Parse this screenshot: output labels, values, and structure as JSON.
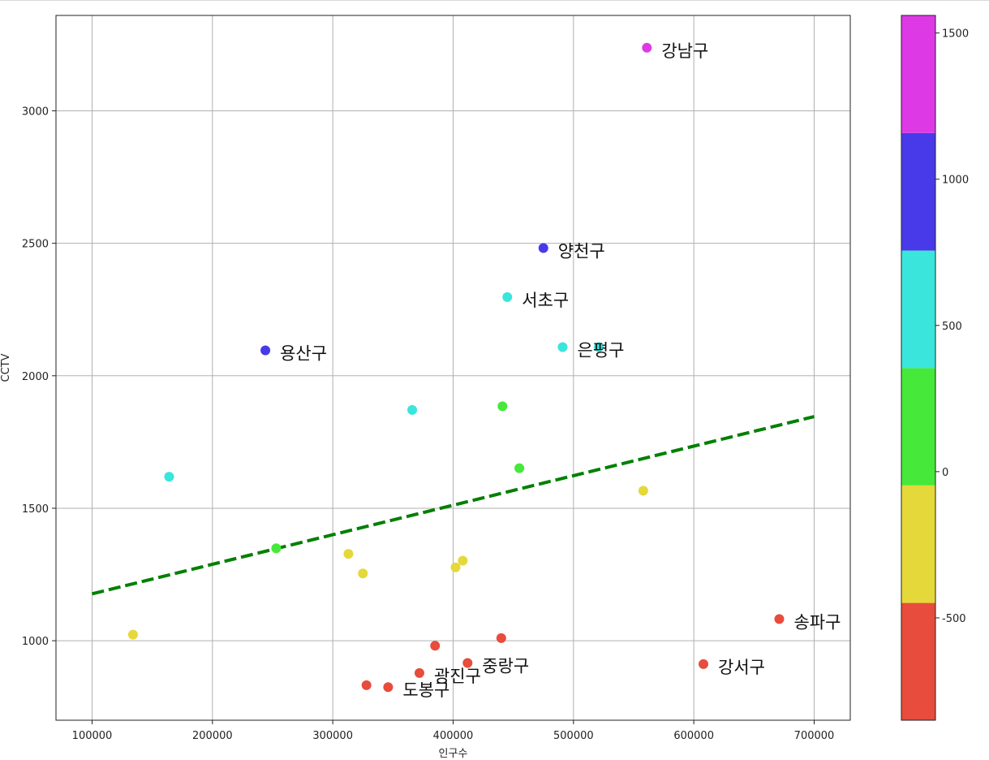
{
  "chart_data": {
    "type": "scatter",
    "xlabel": "인구수",
    "ylabel": "CCTV",
    "xlim": [
      70000,
      730000
    ],
    "ylim": [
      700,
      3360
    ],
    "xticks": [
      100000,
      200000,
      300000,
      400000,
      500000,
      600000,
      700000
    ],
    "yticks": [
      1000,
      1500,
      2000,
      2500,
      3000
    ],
    "grid": true,
    "points": [
      {
        "x": 561000,
        "y": 3238,
        "c": 1450,
        "label": "강남구"
      },
      {
        "x": 475000,
        "y": 2482,
        "c": 1050,
        "label": "양천구"
      },
      {
        "x": 445000,
        "y": 2297,
        "c": 620,
        "label": "서초구"
      },
      {
        "x": 491000,
        "y": 2108,
        "c": 620,
        "label": "은평구"
      },
      {
        "x": 521000,
        "y": 2108,
        "c": 620,
        "label": ""
      },
      {
        "x": 244000,
        "y": 2096,
        "c": 1050,
        "label": "용산구"
      },
      {
        "x": 366000,
        "y": 1871,
        "c": 620,
        "label": ""
      },
      {
        "x": 441000,
        "y": 1885,
        "c": 200,
        "label": ""
      },
      {
        "x": 455000,
        "y": 1651,
        "c": 200,
        "label": ""
      },
      {
        "x": 164000,
        "y": 1619,
        "c": 620,
        "label": ""
      },
      {
        "x": 558000,
        "y": 1566,
        "c": -280,
        "label": ""
      },
      {
        "x": 253000,
        "y": 1349,
        "c": 200,
        "label": ""
      },
      {
        "x": 313000,
        "y": 1328,
        "c": -280,
        "label": ""
      },
      {
        "x": 408000,
        "y": 1302,
        "c": -280,
        "label": ""
      },
      {
        "x": 402000,
        "y": 1277,
        "c": -280,
        "label": ""
      },
      {
        "x": 325000,
        "y": 1254,
        "c": -280,
        "label": ""
      },
      {
        "x": 134000,
        "y": 1023,
        "c": -280,
        "label": ""
      },
      {
        "x": 671000,
        "y": 1082,
        "c": -650,
        "label": "송파구"
      },
      {
        "x": 608000,
        "y": 912,
        "c": -650,
        "label": "강서구"
      },
      {
        "x": 440000,
        "y": 1010,
        "c": -650,
        "label": ""
      },
      {
        "x": 385000,
        "y": 981,
        "c": -650,
        "label": ""
      },
      {
        "x": 412000,
        "y": 916,
        "c": -650,
        "label": "중랑구"
      },
      {
        "x": 372000,
        "y": 878,
        "c": -650,
        "label": "광진구"
      },
      {
        "x": 346000,
        "y": 825,
        "c": -650,
        "label": "도봉구"
      },
      {
        "x": 328000,
        "y": 832,
        "c": -650,
        "label": ""
      }
    ],
    "trendline": {
      "x": [
        100000,
        700000
      ],
      "y": [
        1177,
        1846
      ],
      "color": "#008000",
      "style": "dashed"
    },
    "colorbar": {
      "min": -850,
      "max": 1560,
      "ticks": [
        -500,
        0,
        500,
        1000,
        1500
      ],
      "bands": [
        {
          "from": -850,
          "to": -449,
          "color": "#e74c3c"
        },
        {
          "from": -449,
          "to": -47,
          "color": "#e5d83a"
        },
        {
          "from": -47,
          "to": 354,
          "color": "#46e83a"
        },
        {
          "from": 354,
          "to": 756,
          "color": "#3ae5dc"
        },
        {
          "from": 756,
          "to": 1158,
          "color": "#483ae8"
        },
        {
          "from": 1158,
          "to": 1560,
          "color": "#dd3ae6"
        }
      ]
    }
  }
}
